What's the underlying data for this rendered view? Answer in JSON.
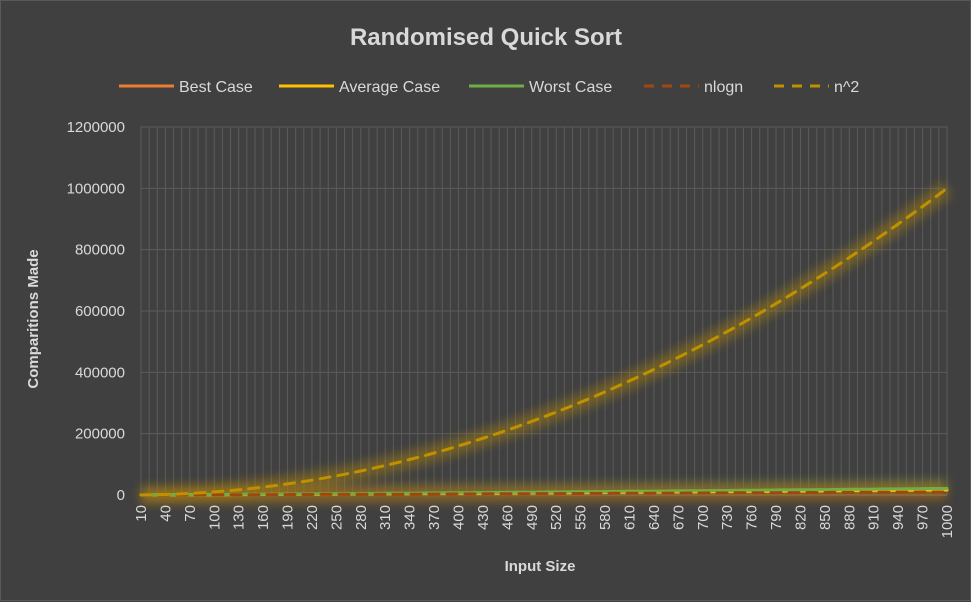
{
  "chart_data": {
    "type": "line",
    "title": "Randomised Quick Sort",
    "xlabel": "Input Size",
    "ylabel": "Comparitions Made",
    "ylim": [
      0,
      1200000
    ],
    "yticks": [
      0,
      200000,
      400000,
      600000,
      800000,
      1000000,
      1200000
    ],
    "ytick_labels": [
      "0",
      "200000",
      "400000",
      "600000",
      "800000",
      "1000000",
      "1200000"
    ],
    "x": [
      10,
      20,
      30,
      40,
      50,
      60,
      70,
      80,
      90,
      100,
      110,
      120,
      130,
      140,
      150,
      160,
      170,
      180,
      190,
      200,
      210,
      220,
      230,
      240,
      250,
      260,
      270,
      280,
      290,
      300,
      310,
      320,
      330,
      340,
      350,
      360,
      370,
      380,
      390,
      400,
      410,
      420,
      430,
      440,
      450,
      460,
      470,
      480,
      490,
      500,
      510,
      520,
      530,
      540,
      550,
      560,
      570,
      580,
      590,
      600,
      610,
      620,
      630,
      640,
      650,
      660,
      670,
      680,
      690,
      700,
      710,
      720,
      730,
      740,
      750,
      760,
      770,
      780,
      790,
      800,
      810,
      820,
      830,
      840,
      850,
      860,
      870,
      880,
      890,
      900,
      910,
      920,
      930,
      940,
      950,
      960,
      970,
      980,
      990,
      1000
    ],
    "xtick_labels": [
      "10",
      "40",
      "70",
      "100",
      "130",
      "160",
      "190",
      "220",
      "250",
      "280",
      "310",
      "340",
      "370",
      "400",
      "430",
      "460",
      "490",
      "520",
      "550",
      "580",
      "610",
      "640",
      "670",
      "700",
      "730",
      "760",
      "790",
      "820",
      "850",
      "880",
      "910",
      "940",
      "970",
      "1000"
    ],
    "legend_position": "top",
    "grid": true,
    "series": [
      {
        "name": "Best Case",
        "style": "solid",
        "color": "#ed7d31",
        "formula": "1.3*n*log2(n)",
        "values": [
          30,
          113,
          191,
          286,
          384,
          490,
          602,
          715,
          827,
          948,
          1063,
          1192,
          1316,
          1432,
          1578,
          1698,
          1818,
          1961,
          2095,
          2215,
          2345,
          2499,
          2628,
          2762,
          2911,
          3058,
          3195,
          3348,
          3474,
          3613,
          3782,
          3929,
          4062,
          4223,
          4355,
          4522,
          4684,
          4813,
          4961,
          5104,
          5279,
          5419,
          5589,
          5730,
          5904,
          6045,
          6203,
          6376,
          6535,
          6694,
          6856,
          7009,
          7186,
          7360,
          7506,
          7698,
          7851,
          8026,
          8173,
          8362,
          8514,
          8700,
          8864,
          9044,
          9203,
          9376,
          9568,
          9745,
          9919,
          10110,
          10281,
          10452,
          10660,
          10812,
          11000,
          11181,
          11363,
          11559,
          11727,
          11944,
          12103,
          12296,
          12485,
          12699,
          12858,
          13041,
          13232,
          13435,
          13618,
          13812,
          14005,
          14199,
          14387,
          14578,
          14773,
          14981,
          15169,
          15388,
          15566,
          15767
        ]
      },
      {
        "name": "Average Case",
        "style": "solid",
        "color": "#ffc000",
        "formula": "1.4*n*log2(n)",
        "values": [
          35,
          122,
          209,
          300,
          399,
          518,
          638,
          750,
          856,
          998,
          1113,
          1223,
          1368,
          1510,
          1640,
          1762,
          1906,
          2054,
          2196,
          2339,
          2486,
          2617,
          2764,
          2934,
          3087,
          3226,
          3371,
          3541,
          3685,
          3857,
          3999,
          4167,
          4323,
          4484,
          4657,
          4825,
          4970,
          5154,
          5313,
          5498,
          5652,
          5836,
          5983,
          6154,
          6349,
          6520,
          6694,
          6863,
          7050,
          7210,
          7384,
          7572,
          7758,
          7935,
          8126,
          8307,
          8477,
          8665,
          8858,
          9034,
          9239,
          9416,
          9593,
          9804,
          9991,
          10186,
          10372,
          10549,
          10765,
          10957,
          11139,
          11328,
          11542,
          11735,
          11938,
          12134,
          12325,
          12538,
          12748,
          12945,
          13145,
          13356,
          13568,
          13747,
          13961,
          14162,
          14375,
          14567,
          14790,
          15007,
          15212,
          15431,
          15634,
          15834,
          16031,
          16260,
          16482,
          16671,
          16890,
          17107
        ]
      },
      {
        "name": "Worst Case",
        "style": "solid",
        "color": "#70ad47",
        "formula": "1.9*n*log2(n)",
        "values": [
          63,
          240,
          390,
          535,
          691,
          848,
          1012,
          1173,
          1342,
          1472,
          1660,
          1812,
          2014,
          2185,
          2358,
          2517,
          2688,
          2884,
          3044,
          3258,
          3420,
          3591,
          3791,
          3975,
          4180,
          4392,
          4546,
          4760,
          4961,
          5171,
          5390,
          5602,
          5792,
          5980,
          6189,
          6400,
          6628,
          6835,
          7023,
          7232,
          7452,
          7678,
          7901,
          8113,
          8351,
          8543,
          8752,
          8974,
          9208,
          9400,
          9645,
          9866,
          10090,
          10309,
          10540,
          10759,
          11012,
          11232,
          11492,
          11700,
          11911,
          12187,
          12399,
          12626,
          12862,
          13121,
          13357,
          13598,
          13806,
          14064,
          14315,
          14550,
          14816,
          15033,
          15293,
          15543,
          15785,
          16004,
          16251,
          16505,
          16781,
          17012,
          17271,
          17496,
          17728,
          17985,
          18220,
          18475,
          18753,
          19032,
          19278,
          19539,
          19770,
          20049,
          20300,
          20536,
          20785,
          21080,
          21320,
          21578
        ]
      },
      {
        "name": "nlogn",
        "style": "dashed",
        "color": "#9e480e",
        "formula": "n*log2(n)",
        "values": [
          33,
          86,
          147,
          213,
          282,
          354,
          429,
          506,
          584,
          664,
          746,
          829,
          913,
          998,
          1084,
          1170,
          1258,
          1347,
          1436,
          1529,
          1620,
          1712,
          1805,
          1899,
          1993,
          2087,
          2183,
          2279,
          2375,
          2469,
          2566,
          2664,
          2761,
          2862,
          2957,
          3060,
          3158,
          3259,
          3360,
          3458,
          3563,
          3658,
          3763,
          3864,
          3965,
          4069,
          4170,
          4276,
          4378,
          4483,
          4588,
          4692,
          4800,
          4903,
          5007,
          5113,
          5221,
          5327,
          5434,
          5538,
          5647,
          5752,
          5861,
          5968,
          6079,
          6185,
          6294,
          6402,
          6512,
          6622,
          6730,
          6842,
          6952,
          7062,
          7167,
          7280,
          7390,
          7502,
          7615,
          7726,
          7838,
          7951,
          8062,
          8174,
          8287,
          8401,
          8514,
          8628,
          8739,
          8855,
          8968,
          9080,
          9196,
          9311,
          9425,
          9543,
          9655,
          9772,
          9888,
          9966
        ]
      },
      {
        "name": "n^2",
        "style": "dashed",
        "color": "#bf9000",
        "formula": "n^2",
        "values": [
          100,
          400,
          900,
          1600,
          2500,
          3600,
          4900,
          6400,
          8100,
          10000,
          12100,
          14400,
          16900,
          19600,
          22500,
          25600,
          28900,
          32400,
          36100,
          40000,
          44100,
          48400,
          52900,
          57600,
          62500,
          67600,
          72900,
          78400,
          84100,
          90000,
          96100,
          102400,
          108900,
          115600,
          122500,
          129600,
          136900,
          144400,
          152100,
          160000,
          168100,
          176400,
          184900,
          193600,
          202500,
          211600,
          220900,
          230400,
          240100,
          250000,
          260100,
          270400,
          280900,
          291600,
          302500,
          313600,
          324900,
          336400,
          348100,
          360000,
          372100,
          384400,
          396900,
          409600,
          422500,
          435600,
          448900,
          462400,
          476100,
          490000,
          504100,
          518400,
          532900,
          547600,
          562500,
          577600,
          592900,
          608400,
          624100,
          640000,
          656100,
          672400,
          688900,
          705600,
          722500,
          739600,
          756900,
          774400,
          792100,
          810000,
          828100,
          846400,
          864900,
          883600,
          902500,
          921600,
          940900,
          960400,
          980100,
          1000000
        ]
      }
    ]
  }
}
